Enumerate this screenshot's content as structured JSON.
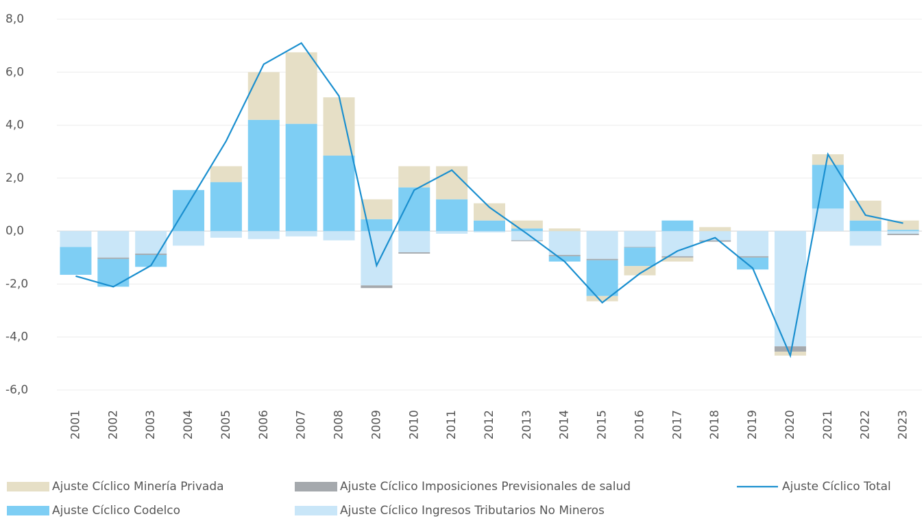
{
  "chart_data": {
    "type": "bar",
    "categories": [
      "2001",
      "2002",
      "2003",
      "2004",
      "2005",
      "2006",
      "2007",
      "2008",
      "2009",
      "2010",
      "2011",
      "2012",
      "2013",
      "2014",
      "2015",
      "2016",
      "2017",
      "2018",
      "2019",
      "2020",
      "2021",
      "2022",
      "2023"
    ],
    "series": [
      {
        "name": "Ajuste Cíclico Minería Privada",
        "color": "#e6dfc6",
        "type": "bar",
        "values": [
          0,
          0,
          0,
          0,
          0.6,
          1.8,
          2.7,
          2.2,
          0.75,
          0.8,
          1.25,
          0.65,
          0.3,
          0.1,
          -0.2,
          -0.35,
          -0.15,
          0.15,
          0,
          -0.15,
          0.4,
          0.75,
          0.35
        ]
      },
      {
        "name": "Ajuste Cíclico Codelco",
        "color": "#7ecef4",
        "type": "bar",
        "values": [
          -1.05,
          -1.05,
          -0.45,
          1.55,
          1.85,
          4.2,
          4.05,
          2.85,
          0.45,
          1.65,
          1.2,
          0.4,
          0.1,
          -0.2,
          -1.35,
          -0.7,
          0.4,
          0,
          -0.45,
          0,
          1.65,
          0.4,
          0.05
        ]
      },
      {
        "name": "Ajuste Cíclico Imposiciones Previsionales de salud",
        "color": "#a5a9ad",
        "type": "bar",
        "values": [
          0,
          -0.05,
          -0.05,
          0,
          0,
          0,
          0,
          0,
          -0.1,
          -0.05,
          0,
          0,
          -0.03,
          -0.05,
          -0.05,
          -0.02,
          -0.05,
          -0.05,
          -0.05,
          -0.2,
          0,
          0,
          -0.05
        ]
      },
      {
        "name": "Ajuste Cíclico Ingresos Tributarios No Mineros",
        "color": "#c9e6f8",
        "type": "bar",
        "values": [
          -0.6,
          -1.0,
          -0.85,
          -0.55,
          -0.25,
          -0.3,
          -0.2,
          -0.35,
          -2.05,
          -0.8,
          -0.1,
          -0.05,
          -0.35,
          -0.9,
          -1.05,
          -0.6,
          -0.95,
          -0.35,
          -0.95,
          -4.35,
          0.85,
          -0.55,
          -0.1
        ]
      },
      {
        "name": "Ajuste Cíclico Total",
        "color": "#1a8fcf",
        "type": "line",
        "values": [
          -1.7,
          -2.1,
          -1.3,
          1.05,
          3.4,
          6.3,
          7.1,
          5.1,
          -1.3,
          1.55,
          2.3,
          0.9,
          -0.1,
          -1.15,
          -2.7,
          -1.6,
          -0.75,
          -0.25,
          -1.4,
          -4.7,
          2.9,
          0.6,
          0.3
        ]
      }
    ],
    "ylim": [
      -6,
      8
    ],
    "yticks": [
      {
        "value": -6,
        "label": "-6,0"
      },
      {
        "value": -4,
        "label": "-4,0"
      },
      {
        "value": -2,
        "label": "-2,0"
      },
      {
        "value": 0,
        "label": "0,0"
      },
      {
        "value": 2,
        "label": "2,0"
      },
      {
        "value": 4,
        "label": "4,0"
      },
      {
        "value": 6,
        "label": "6,0"
      },
      {
        "value": 8,
        "label": "8,0"
      }
    ],
    "grid": true
  }
}
